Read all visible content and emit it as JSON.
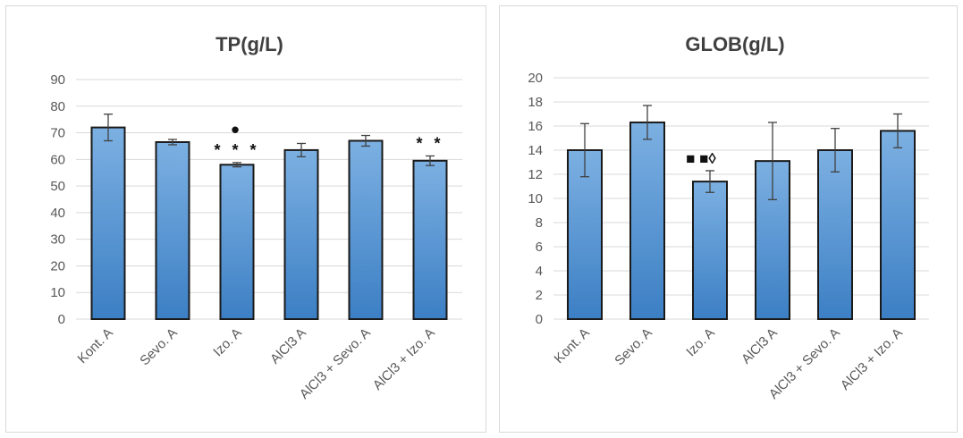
{
  "colors": {
    "bar_fill_top": "#7cb0e2",
    "bar_fill_bottom": "#3c7fc4",
    "bar_stroke": "#1a1a1a",
    "grid": "#d9d9d9",
    "text": "#595959",
    "title": "#404040"
  },
  "chart_data": [
    {
      "type": "bar",
      "title": "TP(g/L)",
      "categories": [
        "Kont. A",
        "Sevo. A",
        "Izo. A",
        "AlCl3 A",
        "AlCl3 + Sevo. A",
        "AlCl3 + Izo. A"
      ],
      "values": [
        72,
        66.5,
        58,
        63.5,
        67,
        59.5
      ],
      "error": [
        5,
        1,
        0.8,
        2.5,
        2,
        1.8
      ],
      "annotations": [
        {
          "category": "Izo. A",
          "lines": [
            "•",
            "* * *"
          ]
        },
        {
          "category": "AlCl3 + Izo. A",
          "lines": [
            "* *"
          ]
        }
      ],
      "yticks": [
        "0",
        "10",
        "20",
        "30",
        "40",
        "50",
        "60",
        "70",
        "80",
        "90"
      ],
      "ylim": [
        0,
        90
      ],
      "grid": true,
      "legend": "none"
    },
    {
      "type": "bar",
      "title": "GLOB(g/L)",
      "categories": [
        "Kont. A",
        "Sevo. A",
        "Izo. A",
        "AlCl3 A",
        "AlCl3 + Sevo. A",
        "AlCl3 + Izo. A"
      ],
      "values": [
        14,
        16.3,
        11.4,
        13.1,
        14,
        15.6
      ],
      "error": [
        2.2,
        1.4,
        0.9,
        3.2,
        1.8,
        1.4
      ],
      "annotations": [
        {
          "category": "Izo. A",
          "lines": [
            "■ ■◊"
          ]
        }
      ],
      "yticks": [
        "0",
        "2",
        "4",
        "6",
        "8",
        "10",
        "12",
        "14",
        "16",
        "18",
        "20"
      ],
      "ylim": [
        0,
        20
      ],
      "grid": true,
      "legend": "none"
    }
  ]
}
